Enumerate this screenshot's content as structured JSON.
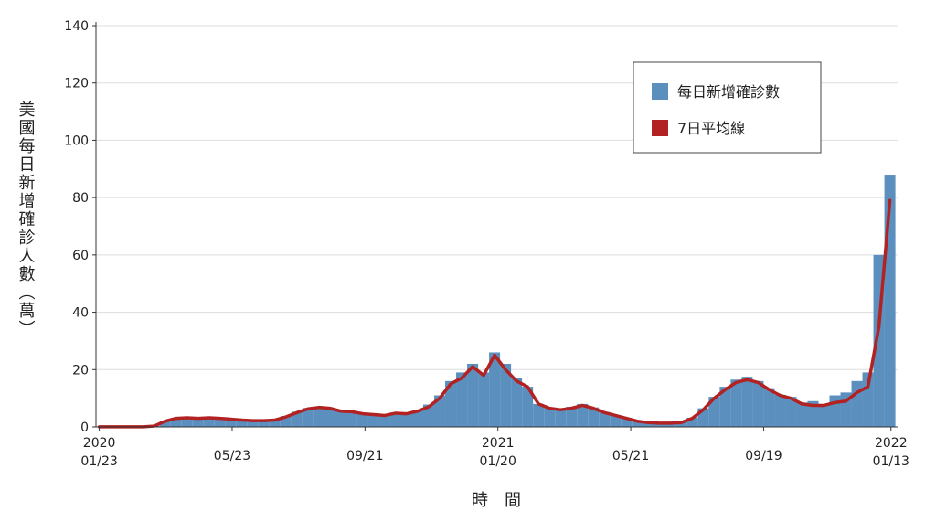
{
  "chart_data": {
    "type": "bar-line",
    "y_label": "美國每日新增確診人數（萬）",
    "x_label": "時　間",
    "x": [
      0,
      10,
      20,
      30,
      40,
      50,
      60,
      70,
      80,
      90,
      100,
      110,
      120,
      130,
      140,
      150,
      160,
      170,
      180,
      190,
      200,
      210,
      220,
      230,
      240,
      250,
      260,
      270,
      280,
      290,
      300,
      310,
      320,
      330,
      340,
      350,
      360,
      370,
      380,
      390,
      400,
      410,
      420,
      430,
      440,
      450,
      460,
      470,
      480,
      490,
      500,
      510,
      520,
      530,
      540,
      550,
      560,
      570,
      580,
      590,
      600,
      610,
      620,
      630,
      640,
      650,
      660,
      670,
      680,
      690,
      700,
      710,
      720
    ],
    "series": [
      {
        "name": "每日新增確診數",
        "color": "#5b8fbd",
        "kind": "bar",
        "values": [
          0.05,
          0.05,
          0.05,
          0.05,
          0.05,
          0.4,
          2.2,
          3.1,
          3.3,
          3.0,
          3.3,
          3.0,
          2.6,
          2.4,
          2.2,
          2.3,
          2.5,
          3.8,
          5.3,
          6.6,
          7.0,
          6.4,
          5.4,
          5.4,
          4.5,
          4.4,
          4.1,
          5.0,
          4.8,
          6.0,
          7.8,
          11,
          16,
          19,
          22,
          19,
          26,
          22,
          17,
          14,
          8,
          6.8,
          6.2,
          7.0,
          8.0,
          6.8,
          5.2,
          4.1,
          3.1,
          2.0,
          1.5,
          1.4,
          1.3,
          1.6,
          3.2,
          6.5,
          10.5,
          14,
          16.5,
          17.5,
          16,
          13.5,
          11.2,
          10.5,
          8.5,
          9,
          8,
          11,
          12,
          16,
          19,
          60,
          88
        ]
      },
      {
        "name": "7日平均線",
        "color": "#b22222",
        "kind": "line",
        "values": [
          0.05,
          0.05,
          0.05,
          0.05,
          0.05,
          0.3,
          2,
          3,
          3.2,
          3,
          3.2,
          3,
          2.7,
          2.4,
          2.2,
          2.2,
          2.4,
          3.5,
          5,
          6.3,
          6.8,
          6.5,
          5.5,
          5.3,
          4.6,
          4.3,
          4,
          4.8,
          4.6,
          5.5,
          7,
          10,
          15,
          17,
          21,
          18,
          25,
          20,
          16,
          14,
          8,
          6.5,
          6,
          6.5,
          7.5,
          6.5,
          5,
          4,
          3,
          2,
          1.5,
          1.3,
          1.3,
          1.5,
          3,
          6,
          10,
          13,
          15.5,
          16.5,
          15.5,
          13,
          11,
          10,
          8,
          7.5,
          7.5,
          8.5,
          9,
          12,
          14,
          35,
          79
        ]
      }
    ],
    "xlim": [
      -3,
      727
    ],
    "xticks": [
      {
        "value": 0,
        "label": "2020\n01/23"
      },
      {
        "value": 121,
        "label": "05/23"
      },
      {
        "value": 242,
        "label": "09/21"
      },
      {
        "value": 363,
        "label": "2021\n01/20"
      },
      {
        "value": 484,
        "label": "05/21"
      },
      {
        "value": 605,
        "label": "09/19"
      },
      {
        "value": 721,
        "label": "2022\n01/13"
      }
    ],
    "ylim": [
      0,
      140
    ],
    "yticks": [
      0,
      20,
      40,
      60,
      80,
      100,
      120,
      140
    ],
    "grid": true
  }
}
